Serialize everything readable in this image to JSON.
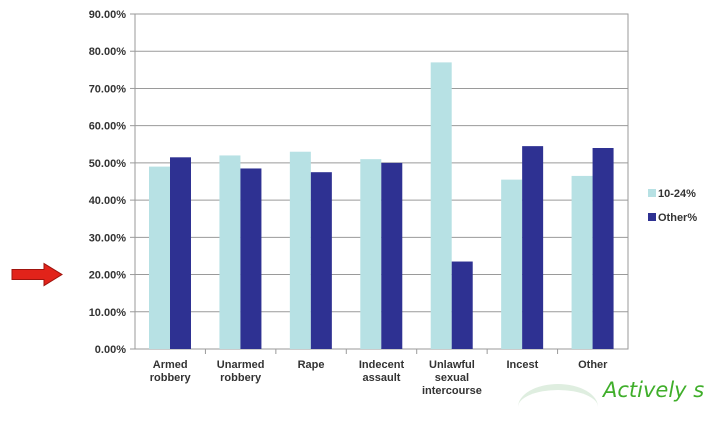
{
  "chart_data": {
    "type": "bar",
    "categories": [
      [
        "Armed",
        "robbery"
      ],
      [
        "Unarmed",
        "robbery"
      ],
      [
        "Rape"
      ],
      [
        "Indecent",
        "assault"
      ],
      [
        "Unlawful",
        "sexual",
        "intercourse"
      ],
      [
        "Incest"
      ],
      [
        "Other"
      ]
    ],
    "series": [
      {
        "name": "10-24%",
        "color": "#b7e1e4",
        "values": [
          49,
          52,
          53,
          51,
          77,
          45.5,
          46.5
        ]
      },
      {
        "name": "Other%",
        "color": "#2e3192",
        "values": [
          51.5,
          48.5,
          47.5,
          50,
          23.5,
          54.5,
          54
        ]
      }
    ],
    "ylim": [
      0,
      90
    ],
    "yticks": [
      "0.00%",
      "10.00%",
      "20.00%",
      "30.00%",
      "40.00%",
      "50.00%",
      "60.00%",
      "70.00%",
      "80.00%",
      "90.00%"
    ],
    "grid": true,
    "legend_position": "right",
    "annotation": {
      "type": "arrow",
      "color": "#e2231a",
      "points_to": "20.00%"
    }
  },
  "branding": {
    "text": "Actively su"
  }
}
